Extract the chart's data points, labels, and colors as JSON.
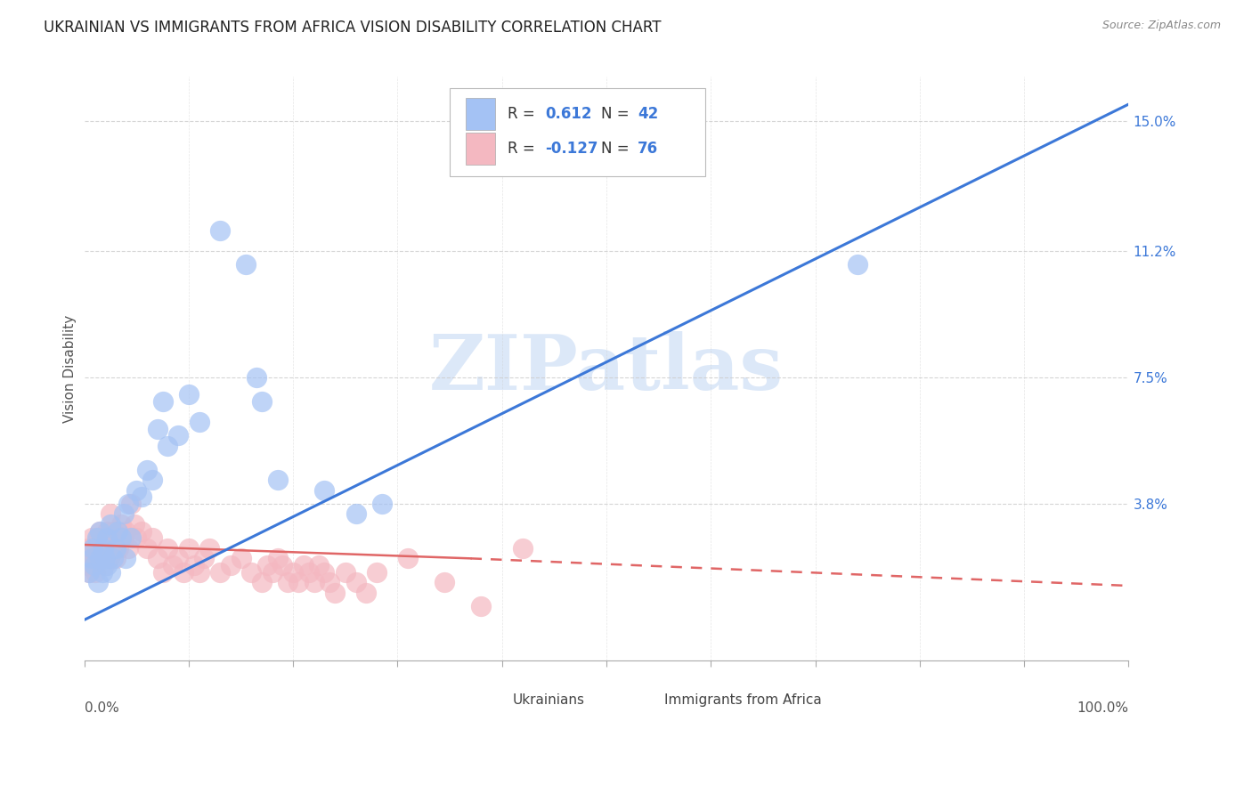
{
  "title": "UKRAINIAN VS IMMIGRANTS FROM AFRICA VISION DISABILITY CORRELATION CHART",
  "source": "Source: ZipAtlas.com",
  "ylabel": "Vision Disability",
  "xlim": [
    0.0,
    1.0
  ],
  "ylim": [
    -0.008,
    0.163
  ],
  "blue_color": "#a4c2f4",
  "pink_color": "#f4b8c1",
  "blue_line_color": "#3c78d8",
  "pink_line_color": "#e06666",
  "legend_color": "#3c78d8",
  "watermark_color": "#d6e4f7",
  "grid_color": "#cccccc",
  "background_color": "#ffffff",
  "title_color": "#222222",
  "ylabel_color": "#555555",
  "bottom_label_color": "#555555",
  "title_fontsize": 12,
  "axis_label_fontsize": 11,
  "legend_fontsize": 12,
  "tick_fontsize": 11,
  "blue_line_x0": 0.0,
  "blue_line_y0": 0.004,
  "blue_line_x1": 1.0,
  "blue_line_y1": 0.155,
  "pink_line_solid_x0": 0.0,
  "pink_line_solid_y0": 0.026,
  "pink_line_solid_x1": 0.37,
  "pink_line_solid_y1": 0.022,
  "pink_line_dash_x0": 0.37,
  "pink_line_dash_y0": 0.022,
  "pink_line_dash_x1": 1.0,
  "pink_line_dash_y1": 0.014,
  "ytick_vals": [
    0.038,
    0.075,
    0.112,
    0.15
  ],
  "ytick_labels": [
    "3.8%",
    "7.5%",
    "11.2%",
    "15.0%"
  ],
  "blue_points_x": [
    0.005,
    0.007,
    0.008,
    0.01,
    0.012,
    0.013,
    0.015,
    0.015,
    0.017,
    0.018,
    0.02,
    0.022,
    0.022,
    0.025,
    0.025,
    0.028,
    0.03,
    0.032,
    0.035,
    0.038,
    0.04,
    0.042,
    0.045,
    0.05,
    0.055,
    0.06,
    0.065,
    0.07,
    0.075,
    0.08,
    0.09,
    0.1,
    0.11,
    0.13,
    0.155,
    0.165,
    0.17,
    0.185,
    0.23,
    0.26,
    0.285,
    0.74
  ],
  "blue_points_y": [
    0.018,
    0.022,
    0.025,
    0.02,
    0.028,
    0.015,
    0.022,
    0.03,
    0.018,
    0.025,
    0.022,
    0.028,
    0.02,
    0.032,
    0.018,
    0.022,
    0.025,
    0.03,
    0.028,
    0.035,
    0.022,
    0.038,
    0.028,
    0.042,
    0.04,
    0.048,
    0.045,
    0.06,
    0.068,
    0.055,
    0.058,
    0.07,
    0.062,
    0.118,
    0.108,
    0.075,
    0.068,
    0.045,
    0.042,
    0.035,
    0.038,
    0.108
  ],
  "pink_points_x": [
    0.002,
    0.003,
    0.004,
    0.005,
    0.006,
    0.007,
    0.008,
    0.009,
    0.01,
    0.011,
    0.012,
    0.013,
    0.014,
    0.015,
    0.016,
    0.017,
    0.018,
    0.019,
    0.02,
    0.022,
    0.024,
    0.025,
    0.026,
    0.027,
    0.028,
    0.03,
    0.032,
    0.033,
    0.035,
    0.038,
    0.04,
    0.042,
    0.045,
    0.048,
    0.05,
    0.055,
    0.06,
    0.065,
    0.07,
    0.075,
    0.08,
    0.085,
    0.09,
    0.095,
    0.1,
    0.105,
    0.11,
    0.115,
    0.12,
    0.13,
    0.14,
    0.15,
    0.16,
    0.17,
    0.175,
    0.18,
    0.185,
    0.19,
    0.195,
    0.2,
    0.205,
    0.21,
    0.215,
    0.22,
    0.225,
    0.23,
    0.235,
    0.24,
    0.25,
    0.26,
    0.27,
    0.28,
    0.31,
    0.345,
    0.38,
    0.42
  ],
  "pink_points_y": [
    0.022,
    0.02,
    0.025,
    0.018,
    0.022,
    0.028,
    0.02,
    0.025,
    0.022,
    0.018,
    0.025,
    0.028,
    0.022,
    0.03,
    0.025,
    0.022,
    0.028,
    0.02,
    0.025,
    0.03,
    0.022,
    0.035,
    0.028,
    0.025,
    0.03,
    0.022,
    0.028,
    0.025,
    0.032,
    0.028,
    0.03,
    0.025,
    0.038,
    0.032,
    0.028,
    0.03,
    0.025,
    0.028,
    0.022,
    0.018,
    0.025,
    0.02,
    0.022,
    0.018,
    0.025,
    0.02,
    0.018,
    0.022,
    0.025,
    0.018,
    0.02,
    0.022,
    0.018,
    0.015,
    0.02,
    0.018,
    0.022,
    0.02,
    0.015,
    0.018,
    0.015,
    0.02,
    0.018,
    0.015,
    0.02,
    0.018,
    0.015,
    0.012,
    0.018,
    0.015,
    0.012,
    0.018,
    0.022,
    0.015,
    0.008,
    0.025
  ]
}
